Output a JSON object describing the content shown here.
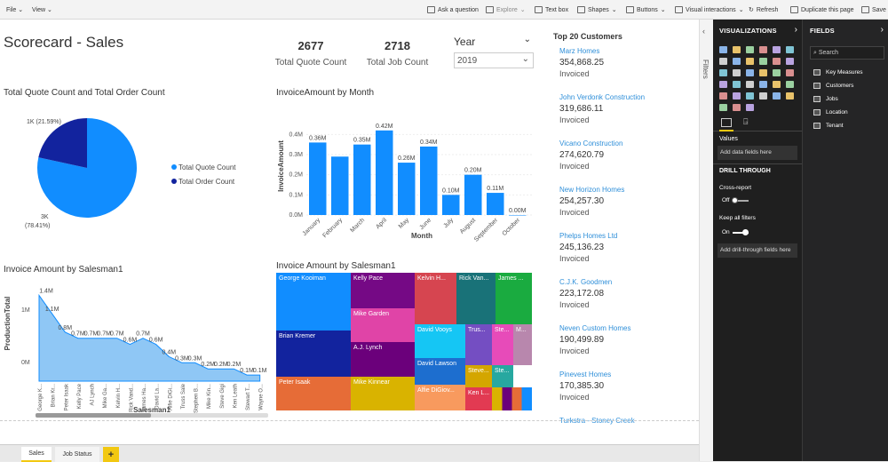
{
  "toolbar": {
    "file": "File",
    "view": "View",
    "ask": "Ask a question",
    "explore": "Explore",
    "textbox": "Text box",
    "shapes": "Shapes",
    "buttons": "Buttons",
    "visual_interactions": "Visual interactions",
    "refresh": "Refresh",
    "duplicate": "Duplicate this page",
    "save": "Save"
  },
  "page_title": "Scorecard - Sales",
  "cards": {
    "quote_value": "2677",
    "quote_label": "Total Quote Count",
    "job_value": "2718",
    "job_label": "Total Job Count"
  },
  "year_slicer": {
    "label": "Year",
    "value": "2019"
  },
  "pie": {
    "title": "Total Quote Count and Total Order Count",
    "label_small": "1K (21.59%)",
    "label_big_1": "3K",
    "label_big_2": "(78.41%)",
    "legend": [
      "Total Quote Count",
      "Total Order Count"
    ],
    "colors": [
      "#118dff",
      "#12239e"
    ]
  },
  "bar": {
    "title": "InvoiceAmount by Month",
    "ylabel": "InvoiceAmount",
    "xlabel": "Month",
    "ticks": [
      "0.4M",
      "0.3M",
      "0.2M",
      "0.1M",
      "0.0M"
    ],
    "months": [
      "January",
      "February",
      "March",
      "April",
      "May",
      "June",
      "July",
      "August",
      "September",
      "October"
    ],
    "labels": [
      "0.36M",
      "",
      "0.35M",
      "0.42M",
      "0.26M",
      "0.34M",
      "0.10M",
      "0.20M",
      "0.11M",
      "0.00M"
    ]
  },
  "chart_data": [
    {
      "type": "pie",
      "title": "Total Quote Count and Total Order Count",
      "categories": [
        "Total Quote Count",
        "Total Order Count"
      ],
      "values": [
        78.41,
        21.59
      ],
      "value_labels": [
        "3K",
        "1K"
      ]
    },
    {
      "type": "bar",
      "title": "InvoiceAmount by Month",
      "xlabel": "Month",
      "ylabel": "InvoiceAmount",
      "ylim": [
        0,
        0.45
      ],
      "categories": [
        "January",
        "February",
        "March",
        "April",
        "May",
        "June",
        "July",
        "August",
        "September",
        "October"
      ],
      "values": [
        0.36,
        0.29,
        0.35,
        0.42,
        0.26,
        0.34,
        0.1,
        0.2,
        0.11,
        0.0
      ]
    },
    {
      "type": "area",
      "title": "Invoice Amount by Salesman1",
      "xlabel": "Salesman1",
      "ylabel": "ProductionTotal",
      "ylim": [
        0,
        1.4
      ],
      "categories": [
        "George K...",
        "Brian Kr...",
        "Peter Isaak",
        "Kelly Pace",
        "AJ Lynch",
        "Mike Ga...",
        "Kelvin H...",
        "Rick Vand...",
        "James Ha...",
        "David La...",
        "Alfie DiGi...",
        "Truss Sale",
        "Stephen B...",
        "Mike Kin...",
        "Steve Gigi",
        "Ken Leath",
        "Stewart T...",
        "Wayne O..."
      ],
      "values": [
        1.4,
        1.1,
        0.8,
        0.7,
        0.7,
        0.7,
        0.7,
        0.6,
        0.7,
        0.6,
        0.4,
        0.3,
        0.3,
        0.2,
        0.2,
        0.2,
        0.1,
        0.1
      ]
    },
    {
      "type": "treemap",
      "title": "Invoice Amount by Salesman1",
      "categories": [
        "George Kooiman",
        "Kelly Pace",
        "Kelvin H...",
        "Rick Van...",
        "James ...",
        "Mike Garden",
        "David Vooys",
        "Brian Kremer",
        "A.J. Lynch",
        "David Lawson",
        "Peter Isaak",
        "Mike Kinnear",
        "Alfie DiGiov...",
        "Steve...",
        "Ken L..."
      ]
    }
  ],
  "area": {
    "title": "Invoice Amount by Salesman1",
    "ylabel": "ProductionTotal",
    "xlabel": "Salesman1",
    "yticks": [
      "1M",
      "0M"
    ],
    "point_labels": [
      "1.4M",
      "1.1M",
      "0.8M",
      "0.7M",
      "0.7M",
      "0.7M",
      "0.7M",
      "0.6M",
      "0.7M",
      "0.6M",
      "0.4M",
      "0.3M",
      "0.3M",
      "0.2M",
      "0.2M",
      "0.2M",
      "0.1M",
      "0.1M"
    ],
    "names": [
      "George K...",
      "Brian Kr...",
      "Peter Isaak",
      "Kelly Pace",
      "AJ Lynch",
      "Mike Ga...",
      "Kelvin H...",
      "Rick Vand...",
      "James Ha...",
      "David La...",
      "Alfie DiGi...",
      "Truss Sale",
      "Stephen B...",
      "Mike Kin...",
      "Steve Gigi",
      "Ken Leath",
      "Stewart T...",
      "Wayne O..."
    ]
  },
  "treemap": {
    "title": "Invoice Amount by Salesman1",
    "tiles": [
      {
        "name": "George Kooiman",
        "color": "#118dff"
      },
      {
        "name": "Kelly Pace",
        "color": "#750985"
      },
      {
        "name": "Kelvin H...",
        "color": "#d64550"
      },
      {
        "name": "Rick Van...",
        "color": "#197278"
      },
      {
        "name": "James ...",
        "color": "#1aab40"
      },
      {
        "name": "Mike Garden",
        "color": "#e044a7"
      },
      {
        "name": "David Vooys",
        "color": "#15c6f4"
      },
      {
        "name": "Trus...",
        "color": "#744ec2"
      },
      {
        "name": "Ste...",
        "color": "#e74bb9"
      },
      {
        "name": "M...",
        "color": "#b887ad"
      },
      {
        "name": "Brian Kremer",
        "color": "#12239e"
      },
      {
        "name": "A.J. Lynch",
        "color": "#6b007b"
      },
      {
        "name": "David Lawson",
        "color": "#1d6ecf"
      },
      {
        "name": "Peter Isaak",
        "color": "#e66c37"
      },
      {
        "name": "Mike Kinnear",
        "color": "#d9b300"
      },
      {
        "name": "Alfie DiGiov...",
        "color": "#f89a5e"
      },
      {
        "name": "Steve...",
        "color": "#d4a600"
      },
      {
        "name": "Ste...",
        "color": "#27a8a0"
      },
      {
        "name": "Ken L...",
        "color": "#e23a52"
      }
    ]
  },
  "customers": {
    "title": "Top 20 Customers",
    "sub": "Invoiced",
    "items": [
      {
        "name": "Marz Homes",
        "value": "354,868.25"
      },
      {
        "name": "John Verdonk Construction",
        "value": "319,686.11"
      },
      {
        "name": "Vicano Construction",
        "value": "274,620.79"
      },
      {
        "name": "New Horizon Homes",
        "value": "254,257.30"
      },
      {
        "name": "Phelps Homes Ltd",
        "value": "245,136.23"
      },
      {
        "name": "C.J.K. Goodmen",
        "value": "223,172.08"
      },
      {
        "name": "Neven Custom Homes",
        "value": "190,499.89"
      },
      {
        "name": "Pinevest Homes",
        "value": "170,385.30"
      },
      {
        "name": "Turkstra - Stoney Creek",
        "value": ""
      }
    ]
  },
  "filters_label": "Filters",
  "vis_pane": {
    "title": "VISUALIZATIONS",
    "values": "Values",
    "add_data": "Add data fields here",
    "drill": "DRILL THROUGH",
    "cross": "Cross-report",
    "off": "Off",
    "keep": "Keep all filters",
    "on": "On",
    "add_drill": "Add drill-through fields here"
  },
  "fields_pane": {
    "title": "FIELDS",
    "search": "Search",
    "items": [
      "Key Measures",
      "Customers",
      "Jobs",
      "Location",
      "Tenant"
    ]
  },
  "tabs": {
    "sales": "Sales",
    "job_status": "Job Status",
    "add": "+"
  }
}
